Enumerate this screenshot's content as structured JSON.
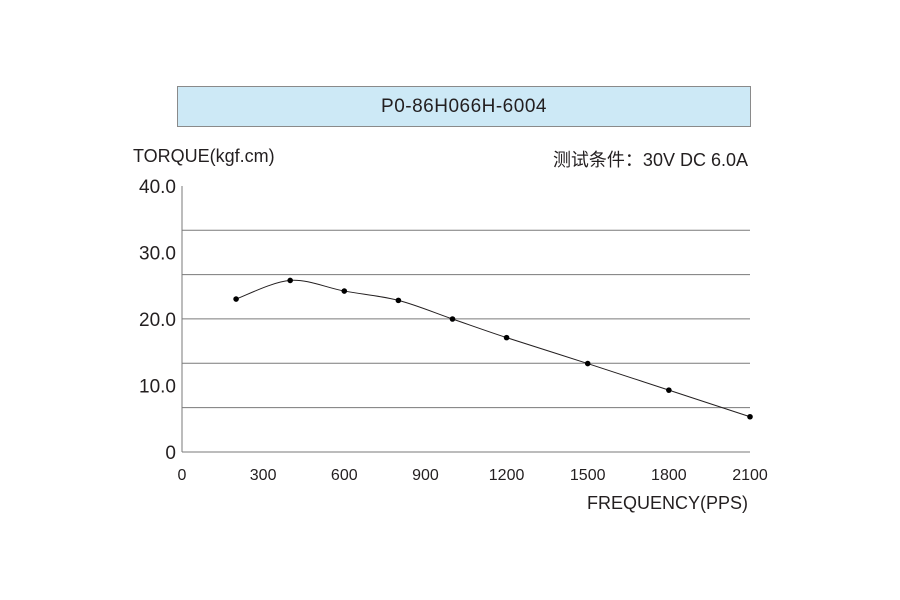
{
  "title": "P0-86H066H-6004",
  "test_conditions": "测试条件：30V DC  6.0A",
  "chart_data": {
    "type": "line",
    "title": "P0-86H066H-6004",
    "xlabel": "FREQUENCY(PPS)",
    "ylabel": "TORQUE(kgf.cm)",
    "xlim": [
      0,
      2100
    ],
    "ylim": [
      0,
      40
    ],
    "x_ticks": [
      "0",
      "300",
      "600",
      "900",
      "1200",
      "1500",
      "1800",
      "2100"
    ],
    "y_ticks": [
      "0",
      "10.0",
      "20.0",
      "30.0",
      "40.0"
    ],
    "grid": true,
    "grid_step_y": 6.67,
    "series": [
      {
        "x": [
          200,
          400,
          600,
          800,
          1000,
          1200,
          1500,
          1800,
          2100
        ],
        "y": [
          23.0,
          25.8,
          24.2,
          22.8,
          20.0,
          17.2,
          13.3,
          9.3,
          5.3
        ]
      }
    ]
  }
}
